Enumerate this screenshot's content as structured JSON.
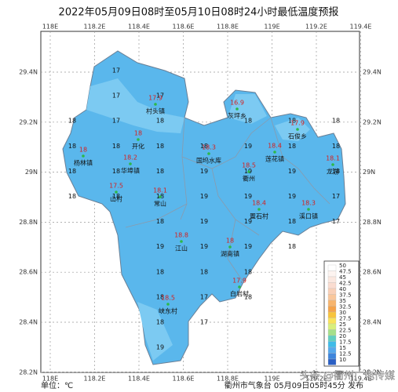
{
  "title": "2022年05月09日08时至05月10日08时24小时最低温度预报",
  "lon_ticks": [
    {
      "value": 118,
      "label": "118E"
    },
    {
      "value": 118.2,
      "label": "118.2E"
    },
    {
      "value": 118.4,
      "label": "118.4E"
    },
    {
      "value": 118.6,
      "label": "118.6E"
    },
    {
      "value": 118.8,
      "label": "118.8E"
    },
    {
      "value": 119,
      "label": "119E"
    },
    {
      "value": 119.2,
      "label": "119.2E"
    },
    {
      "value": 119.4,
      "label": "119.4E"
    }
  ],
  "lat_ticks": [
    {
      "value": 29.4,
      "label": "29.4N"
    },
    {
      "value": 29.2,
      "label": "29.2N"
    },
    {
      "value": 29,
      "label": "29N"
    },
    {
      "value": 28.8,
      "label": "28.8N"
    },
    {
      "value": 28.6,
      "label": "28.6N"
    },
    {
      "value": 28.4,
      "label": "28.4N"
    },
    {
      "value": 28.2,
      "label": "28.2N"
    }
  ],
  "grid_values": [
    [
      null,
      17,
      null,
      null,
      null,
      null,
      null
    ],
    [
      null,
      17,
      17,
      null,
      null,
      null,
      null
    ],
    [
      18,
      17,
      18,
      null,
      18,
      18,
      18
    ],
    [
      18,
      18,
      18,
      18,
      19,
      18,
      18
    ],
    [
      18,
      18,
      18,
      19,
      19,
      19,
      18
    ],
    [
      18,
      18,
      18,
      19,
      19,
      19,
      17
    ],
    [
      null,
      null,
      18,
      19,
      19,
      18,
      17
    ],
    [
      null,
      null,
      19,
      19,
      19,
      18,
      null
    ],
    [
      null,
      null,
      18,
      18,
      18,
      null,
      null
    ],
    [
      null,
      null,
      18,
      17,
      18,
      null,
      null
    ],
    [
      null,
      null,
      18,
      17,
      null,
      null,
      null
    ],
    [
      null,
      null,
      19,
      null,
      null,
      null,
      null
    ]
  ],
  "stations": [
    {
      "name": "村头镇",
      "temp": 17.9
    },
    {
      "name": "灰坪乡",
      "temp": 16.9
    },
    {
      "name": "石俊乡",
      "temp": 17.9
    },
    {
      "name": "开化",
      "temp": 18.0
    },
    {
      "name": "杨林镇",
      "temp": 18.0
    },
    {
      "name": "华埠镇",
      "temp": 18.2
    },
    {
      "name": "国坞水库",
      "temp": 18.3
    },
    {
      "name": "莲花镇",
      "temp": 18.4
    },
    {
      "name": "龙游",
      "temp": 18.1
    },
    {
      "name": "衢州",
      "temp": 18.5
    },
    {
      "name": "山村",
      "temp": 17.5
    },
    {
      "name": "常山",
      "temp": 18.1
    },
    {
      "name": "置石村",
      "temp": 18.4
    },
    {
      "name": "溪口镇",
      "temp": 18.3
    },
    {
      "name": "江山",
      "temp": 18.8
    },
    {
      "name": "湖南镇",
      "temp": 18.0
    },
    {
      "name": "白岩村",
      "temp": 17.9
    },
    {
      "name": "峡东村",
      "temp": 18.5
    }
  ],
  "legend": {
    "values": [
      50,
      47.5,
      45,
      42.5,
      40,
      37.5,
      35,
      32.5,
      30,
      27.5,
      25,
      22.5,
      20,
      17.5,
      15,
      12.5,
      10
    ],
    "colors": [
      "#ffffff",
      "#fdf4f0",
      "#fbe8e0",
      "#fadcd0",
      "#f9d0b8",
      "#f9c79c",
      "#f7b56e",
      "#f5a34a",
      "#f8c43c",
      "#fae35a",
      "#d9ef7c",
      "#a6e08a",
      "#62cfc0",
      "#3fbbe8",
      "#55a8ec",
      "#3d85dc",
      "#2a5fc4"
    ]
  },
  "unit": "单位：℃",
  "footer": "衢州市气象台 05月09日05时45分 发布",
  "watermark": "头条 @衢州广电传媒"
}
